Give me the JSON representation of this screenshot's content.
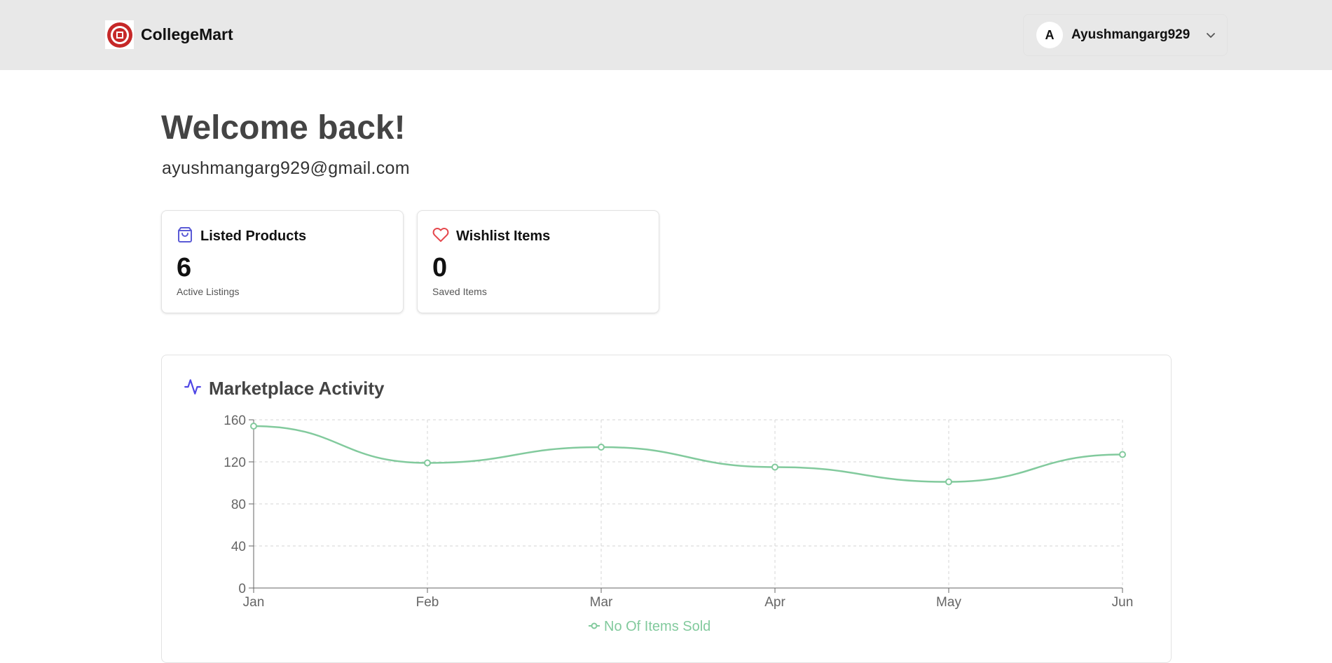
{
  "header": {
    "brand": "CollegeMart",
    "user": {
      "initial": "A",
      "name": "Ayushmangarg929"
    }
  },
  "welcome": {
    "title": "Welcome back!",
    "email": "ayushmangarg929@gmail.com"
  },
  "stats": [
    {
      "title": "Listed Products",
      "value": "6",
      "sub": "Active Listings",
      "icon": "shopping-bag-icon",
      "color": "#5b5bd6"
    },
    {
      "title": "Wishlist Items",
      "value": "0",
      "sub": "Saved Items",
      "icon": "heart-icon",
      "color": "#e5484d"
    }
  ],
  "activity": {
    "title": "Marketplace Activity",
    "icon": "activity-icon",
    "icon_color": "#4f46e5"
  },
  "chart_data": {
    "type": "line",
    "categories": [
      "Jan",
      "Feb",
      "Mar",
      "Apr",
      "May",
      "Jun"
    ],
    "series": [
      {
        "name": "No Of Items Sold",
        "values": [
          154,
          119,
          134,
          115,
          101,
          127
        ],
        "color": "#82ca9d"
      }
    ],
    "ylim": [
      0,
      160
    ],
    "yticks": [
      "0",
      "40",
      "80",
      "120",
      "160"
    ],
    "grid": true,
    "legend": "bottom"
  }
}
